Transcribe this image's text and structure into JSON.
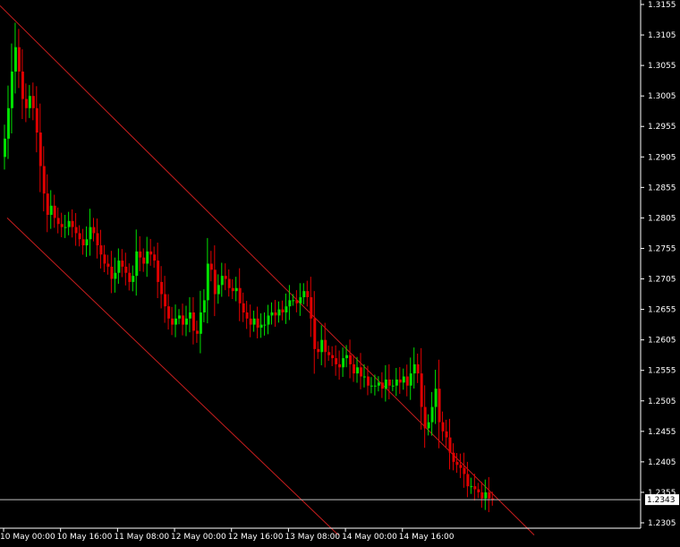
{
  "chart_data": {
    "type": "candlestick",
    "title": "",
    "xlabel": "",
    "ylabel": "",
    "ylim": [
      1.2285,
      1.3165
    ],
    "y_ticks": [
      "1.3155",
      "1.3105",
      "1.3055",
      "1.3005",
      "1.2955",
      "1.2905",
      "1.2855",
      "1.2805",
      "1.2755",
      "1.2705",
      "1.2655",
      "1.2605",
      "1.2555",
      "1.2505",
      "1.2455",
      "1.2405",
      "1.2355",
      "1.2305"
    ],
    "x_ticks": [
      "10 May 00:00",
      "10 May 16:00",
      "11 May 08:00",
      "12 May 00:00",
      "12 May 16:00",
      "13 May 08:00",
      "14 May 00:00",
      "14 May 16:00"
    ],
    "current_price": "1.2343",
    "colors": {
      "background": "#000000",
      "axis": "#ffffff",
      "bull": "#00e000",
      "bear": "#e00000",
      "channel": "#c81e1e",
      "price_line": "#c0c0c0",
      "price_label_bg": "#ffffff",
      "price_label_text": "#000000"
    },
    "channel_lines": [
      {
        "name": "upper",
        "start": {
          "bar": -1,
          "price": 1.3153
        },
        "end": {
          "bar": 149,
          "price": 1.2285
        }
      },
      {
        "name": "lower",
        "start": {
          "bar": 1,
          "price": 1.2805
        },
        "end": {
          "bar": 94,
          "price": 1.2285
        }
      }
    ],
    "closes": [
      1.2935,
      1.2985,
      1.3045,
      1.3085,
      1.3045,
      1.3,
      1.2985,
      1.3005,
      1.2985,
      1.2945,
      1.289,
      1.2845,
      1.281,
      1.2825,
      1.2805,
      1.2795,
      1.279,
      1.279,
      1.28,
      1.279,
      1.278,
      1.277,
      1.276,
      1.277,
      1.279,
      1.278,
      1.276,
      1.2745,
      1.273,
      1.2725,
      1.2705,
      1.2715,
      1.2735,
      1.2725,
      1.2715,
      1.27,
      1.271,
      1.275,
      1.274,
      1.273,
      1.275,
      1.2745,
      1.2735,
      1.27,
      1.268,
      1.266,
      1.264,
      1.263,
      1.264,
      1.2645,
      1.263,
      1.264,
      1.265,
      1.262,
      1.2615,
      1.265,
      1.267,
      1.273,
      1.272,
      1.268,
      1.2695,
      1.271,
      1.2705,
      1.269,
      1.2685,
      1.269,
      1.2665,
      1.265,
      1.264,
      1.263,
      1.264,
      1.2625,
      1.263,
      1.263,
      1.2645,
      1.265,
      1.2645,
      1.2655,
      1.265,
      1.266,
      1.267,
      1.267,
      1.2665,
      1.2675,
      1.2685,
      1.2675,
      1.264,
      1.259,
      1.2585,
      1.2605,
      1.2585,
      1.258,
      1.2575,
      1.2565,
      1.256,
      1.2575,
      1.258,
      1.2565,
      1.255,
      1.256,
      1.2545,
      1.2545,
      1.253,
      1.253,
      1.253,
      1.2535,
      1.2525,
      1.254,
      1.253,
      1.253,
      1.254,
      1.2535,
      1.2545,
      1.253,
      1.255,
      1.2565,
      1.255,
      1.2495,
      1.246,
      1.247,
      1.2495,
      1.2525,
      1.247,
      1.2455,
      1.2445,
      1.242,
      1.2405,
      1.24,
      1.2395,
      1.2385,
      1.2365,
      1.2365,
      1.236,
      1.2355,
      1.2345,
      1.2355,
      1.2345,
      1.2343
    ],
    "first_open": 1.2905,
    "x_tick_bars": [
      0,
      16,
      32,
      48,
      64,
      80,
      96,
      112
    ]
  }
}
